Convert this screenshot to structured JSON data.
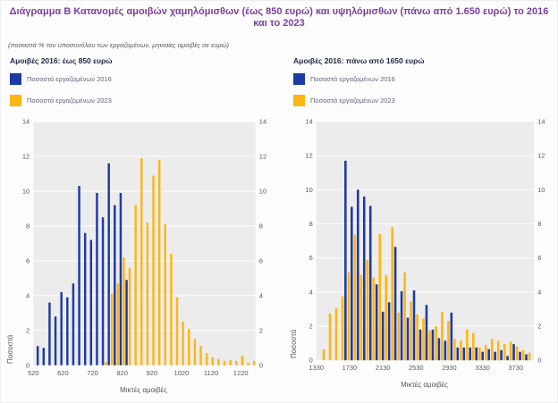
{
  "title": "Διάγραμμα Β Κατανομές αμοιβών χαμηλόμισθων (έως 850 ευρώ) και υψηλόμισθων (πάνω από 1.650 ευρώ) το 2016 και το 2023",
  "subtitle": "(ποσοστά % του υποσυνόλου των εργαζομένων, μηνιαίες αμοιβές σε ευρώ)",
  "colors": {
    "series2016": "#1e3aa5",
    "series2023": "#feb613",
    "plot_bg": "#ececec",
    "grid": "#ffffff",
    "title": "#7b3f9b",
    "axis_text": "#595959"
  },
  "chart_data": [
    {
      "type": "bar",
      "title": "Αμοιβές 2016: έως 850 ευρώ",
      "xlabel": "Μικτές αμοιβές",
      "ylabel": "Ποσοστά",
      "ylim": [
        0,
        14
      ],
      "yticks": [
        0,
        2,
        4,
        6,
        8,
        10,
        12,
        14
      ],
      "xlim": [
        520,
        1270
      ],
      "xticks": [
        520,
        620,
        720,
        820,
        920,
        1020,
        1120,
        1220
      ],
      "bin_width": 20,
      "grid": true,
      "legend_position": "top-left",
      "x": [
        540,
        560,
        580,
        600,
        620,
        640,
        660,
        680,
        700,
        720,
        740,
        760,
        780,
        800,
        820,
        840,
        860,
        880,
        900,
        920,
        940,
        960,
        980,
        1000,
        1020,
        1040,
        1060,
        1080,
        1100,
        1120,
        1140,
        1160,
        1180,
        1200,
        1220,
        1240,
        1260
      ],
      "series": [
        {
          "name": "Ποσοστά εργαζομένων 2016",
          "values": [
            1.1,
            1.0,
            3.6,
            2.8,
            4.2,
            3.9,
            4.7,
            10.3,
            7.6,
            7.2,
            9.9,
            8.5,
            11.6,
            9.2,
            9.9,
            4.9,
            0,
            0,
            0,
            0,
            0,
            0,
            0,
            0,
            0,
            0,
            0,
            0,
            0,
            0,
            0,
            0,
            0,
            0,
            0,
            0,
            0
          ]
        },
        {
          "name": "Ποσοστά εργαζομένων 2023",
          "values": [
            0,
            0,
            0,
            0,
            0,
            0,
            0,
            0,
            0,
            0,
            0,
            0.2,
            4.1,
            4.7,
            6.2,
            5.6,
            9.2,
            11.9,
            8.2,
            10.9,
            11.8,
            8.1,
            6.4,
            3.9,
            2.5,
            2.1,
            1.5,
            1.1,
            0.7,
            0.45,
            0.35,
            0.25,
            0.3,
            0.25,
            0.55,
            0.15,
            0.25
          ]
        }
      ]
    },
    {
      "type": "bar",
      "title": "Αμοιβές 2016: πάνω από 1650 ευρώ",
      "xlabel": "Μικτές αμοιβές",
      "ylabel": "Ποσοστά",
      "ylim": [
        0,
        14
      ],
      "yticks": [
        0,
        2,
        4,
        6,
        8,
        10,
        12,
        14
      ],
      "xlim": [
        1330,
        3950
      ],
      "xticks": [
        1330,
        1730,
        2130,
        2530,
        2930,
        3330,
        3730
      ],
      "bin_width": 75,
      "grid": true,
      "legend_position": "top-left",
      "x": [
        1400,
        1475,
        1550,
        1625,
        1700,
        1775,
        1850,
        1925,
        2000,
        2075,
        2150,
        2225,
        2300,
        2375,
        2450,
        2525,
        2600,
        2675,
        2750,
        2825,
        2900,
        2975,
        3050,
        3125,
        3200,
        3275,
        3350,
        3425,
        3500,
        3575,
        3650,
        3725,
        3800,
        3875
      ],
      "series": [
        {
          "name": "Ποσοστά εργαζομένων 2016",
          "values": [
            0,
            0,
            0,
            0,
            11.7,
            9.0,
            10.0,
            9.6,
            9.05,
            4.45,
            2.85,
            3.4,
            6.65,
            4.05,
            2.5,
            4.1,
            1.8,
            3.25,
            1.8,
            1.3,
            1.15,
            2.8,
            0.75,
            0.75,
            0.75,
            0.75,
            0.5,
            0.65,
            0.5,
            0.6,
            0.25,
            0.95,
            0.5,
            0.35
          ]
        },
        {
          "name": "Ποσοστά εργαζομένων 2023",
          "values": [
            0.65,
            2.75,
            3.05,
            3.75,
            5.15,
            7.35,
            5.0,
            5.9,
            4.85,
            7.4,
            5.0,
            7.8,
            2.8,
            5.15,
            3.45,
            2.7,
            2.45,
            1.75,
            2.0,
            2.85,
            2.3,
            1.25,
            1.15,
            1.8,
            1.6,
            0.75,
            0.9,
            1.25,
            1.15,
            0.95,
            1.1,
            0.8,
            0.6,
            0.45
          ]
        }
      ]
    }
  ]
}
